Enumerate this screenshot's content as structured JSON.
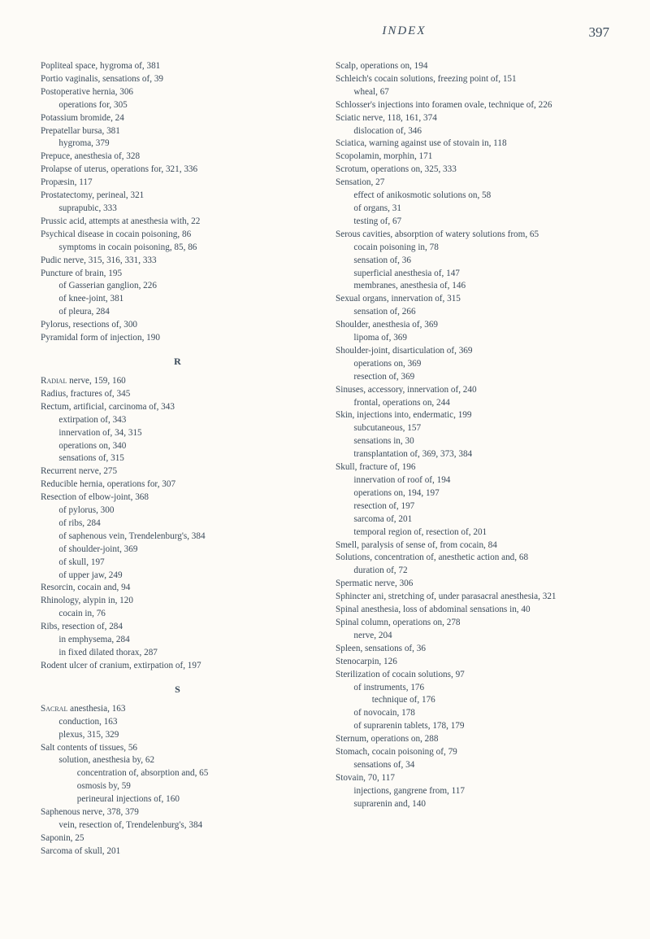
{
  "header": {
    "title": "INDEX",
    "page": "397"
  },
  "left_col": {
    "block1": [
      {
        "t": "Popliteal space, hygroma of, 381",
        "i": 0
      },
      {
        "t": "Portio vaginalis, sensations of, 39",
        "i": 0
      },
      {
        "t": "Postoperative hernia, 306",
        "i": 0
      },
      {
        "t": "operations for, 305",
        "i": 1
      },
      {
        "t": "Potassium bromide, 24",
        "i": 0
      },
      {
        "t": "Prepatellar bursa, 381",
        "i": 0
      },
      {
        "t": "hygroma, 379",
        "i": 1
      },
      {
        "t": "Prepuce, anesthesia of, 328",
        "i": 0
      },
      {
        "t": "Prolapse of uterus, operations for, 321, 336",
        "i": 0
      },
      {
        "t": "Propæsin, 117",
        "i": 0
      },
      {
        "t": "Prostatectomy, perineal, 321",
        "i": 0
      },
      {
        "t": "suprapubic, 333",
        "i": 1
      },
      {
        "t": "Prussic acid, attempts at anesthesia with, 22",
        "i": 0
      },
      {
        "t": "Psychical disease in cocain poisoning, 86",
        "i": 0
      },
      {
        "t": "symptoms in cocain poisoning, 85, 86",
        "i": 1
      },
      {
        "t": "Pudic nerve, 315, 316, 331, 333",
        "i": 0
      },
      {
        "t": "Puncture of brain, 195",
        "i": 0
      },
      {
        "t": "of Gasserian ganglion, 226",
        "i": 1
      },
      {
        "t": "of knee-joint, 381",
        "i": 1
      },
      {
        "t": "of pleura, 284",
        "i": 1
      },
      {
        "t": "Pylorus, resections of, 300",
        "i": 0
      },
      {
        "t": "Pyramidal form of injection, 190",
        "i": 0
      }
    ],
    "section_R": "R",
    "block2": [
      {
        "t": "Radial nerve, 159, 160",
        "i": 0,
        "sc": true
      },
      {
        "t": "Radius, fractures of, 345",
        "i": 0
      },
      {
        "t": "Rectum, artificial, carcinoma of, 343",
        "i": 0
      },
      {
        "t": "extirpation of, 343",
        "i": 1
      },
      {
        "t": "innervation of, 34, 315",
        "i": 1
      },
      {
        "t": "operations on, 340",
        "i": 1
      },
      {
        "t": "sensations of, 315",
        "i": 1
      },
      {
        "t": "Recurrent nerve, 275",
        "i": 0
      },
      {
        "t": "Reducible hernia, operations for, 307",
        "i": 0
      },
      {
        "t": "Resection of elbow-joint, 368",
        "i": 0
      },
      {
        "t": "of pylorus, 300",
        "i": 1
      },
      {
        "t": "of ribs, 284",
        "i": 1
      },
      {
        "t": "of saphenous vein, Trendelenburg's, 384",
        "i": 1
      },
      {
        "t": "of shoulder-joint, 369",
        "i": 1
      },
      {
        "t": "of skull, 197",
        "i": 1
      },
      {
        "t": "of upper jaw, 249",
        "i": 1
      },
      {
        "t": "Resorcin, cocain and, 94",
        "i": 0
      },
      {
        "t": "Rhinology, alypin in, 120",
        "i": 0
      },
      {
        "t": "cocain in, 76",
        "i": 1
      },
      {
        "t": "Ribs, resection of, 284",
        "i": 0
      },
      {
        "t": "in emphysema, 284",
        "i": 1
      },
      {
        "t": "in fixed dilated thorax, 287",
        "i": 1
      },
      {
        "t": "Rodent ulcer of cranium, extirpation of, 197",
        "i": 0
      }
    ],
    "section_S": "S",
    "block3": [
      {
        "t": "Sacral anesthesia, 163",
        "i": 0,
        "sc": true
      },
      {
        "t": "conduction, 163",
        "i": 1
      },
      {
        "t": "plexus, 315, 329",
        "i": 1
      },
      {
        "t": "Salt contents of tissues, 56",
        "i": 0
      },
      {
        "t": "solution, anesthesia by, 62",
        "i": 1
      },
      {
        "t": "concentration of, absorption and, 65",
        "i": 2
      },
      {
        "t": "osmosis by, 59",
        "i": 2
      },
      {
        "t": "perineural injections of, 160",
        "i": 2
      },
      {
        "t": "Saphenous nerve, 378, 379",
        "i": 0
      },
      {
        "t": "vein, resection of, Trendelenburg's, 384",
        "i": 1
      },
      {
        "t": "Saponin, 25",
        "i": 0
      },
      {
        "t": "Sarcoma of skull, 201",
        "i": 0
      }
    ]
  },
  "right_col": {
    "block1": [
      {
        "t": "Scalp, operations on, 194",
        "i": 0
      },
      {
        "t": "Schleich's cocain solutions, freezing point of, 151",
        "i": 0
      },
      {
        "t": "wheal, 67",
        "i": 1
      },
      {
        "t": "Schlosser's injections into foramen ovale, technique of, 226",
        "i": 0
      },
      {
        "t": "Sciatic nerve, 118, 161, 374",
        "i": 0
      },
      {
        "t": "dislocation of, 346",
        "i": 1
      },
      {
        "t": "Sciatica, warning against use of stovain in, 118",
        "i": 0
      },
      {
        "t": "Scopolamin, morphin, 171",
        "i": 0
      },
      {
        "t": "Scrotum, operations on, 325, 333",
        "i": 0
      },
      {
        "t": "Sensation, 27",
        "i": 0
      },
      {
        "t": "effect of anikosmotic solutions on, 58",
        "i": 1
      },
      {
        "t": "of organs, 31",
        "i": 1
      },
      {
        "t": "testing of, 67",
        "i": 1
      },
      {
        "t": "Serous cavities, absorption of watery solutions from, 65",
        "i": 0
      },
      {
        "t": "cocain poisoning in, 78",
        "i": 1
      },
      {
        "t": "sensation of, 36",
        "i": 1
      },
      {
        "t": "superficial anesthesia of, 147",
        "i": 1
      },
      {
        "t": "membranes, anesthesia of, 146",
        "i": 1
      },
      {
        "t": "Sexual organs, innervation of, 315",
        "i": 0
      },
      {
        "t": "sensation of, 266",
        "i": 1
      },
      {
        "t": "Shoulder, anesthesia of, 369",
        "i": 0
      },
      {
        "t": "lipoma of, 369",
        "i": 1
      },
      {
        "t": "Shoulder-joint, disarticulation of, 369",
        "i": 0
      },
      {
        "t": "operations on, 369",
        "i": 1
      },
      {
        "t": "resection of, 369",
        "i": 1
      },
      {
        "t": "Sinuses, accessory, innervation of, 240",
        "i": 0
      },
      {
        "t": "frontal, operations on, 244",
        "i": 1
      },
      {
        "t": "Skin, injections into, endermatic, 199",
        "i": 0
      },
      {
        "t": "subcutaneous, 157",
        "i": 1
      },
      {
        "t": "sensations in, 30",
        "i": 1
      },
      {
        "t": "transplantation of, 369, 373, 384",
        "i": 1
      },
      {
        "t": "Skull, fracture of, 196",
        "i": 0
      },
      {
        "t": "innervation of roof of, 194",
        "i": 1
      },
      {
        "t": "operations on, 194, 197",
        "i": 1
      },
      {
        "t": "resection of, 197",
        "i": 1
      },
      {
        "t": "sarcoma of, 201",
        "i": 1
      },
      {
        "t": "temporal region of, resection of, 201",
        "i": 1
      },
      {
        "t": "Smell, paralysis of sense of, from cocain, 84",
        "i": 0
      },
      {
        "t": "Solutions, concentration of, anesthetic action and, 68",
        "i": 0
      },
      {
        "t": "duration of, 72",
        "i": 1
      },
      {
        "t": "Spermatic nerve, 306",
        "i": 0
      },
      {
        "t": "Sphincter ani, stretching of, under parasacral anesthesia, 321",
        "i": 0
      },
      {
        "t": "Spinal anesthesia, loss of abdominal sensations in, 40",
        "i": 0
      },
      {
        "t": "Spinal column, operations on, 278",
        "i": 0
      },
      {
        "t": "nerve, 204",
        "i": 1
      },
      {
        "t": "Spleen, sensations of, 36",
        "i": 0
      },
      {
        "t": "Stenocarpin, 126",
        "i": 0
      },
      {
        "t": "Sterilization of cocain solutions, 97",
        "i": 0
      },
      {
        "t": "of instruments, 176",
        "i": 1
      },
      {
        "t": "technique of, 176",
        "i": 2
      },
      {
        "t": "of novocain, 178",
        "i": 1
      },
      {
        "t": "of suprarenin tablets, 178, 179",
        "i": 1
      },
      {
        "t": "Sternum, operations on, 288",
        "i": 0
      },
      {
        "t": "Stomach, cocain poisoning of, 79",
        "i": 0
      },
      {
        "t": "sensations of, 34",
        "i": 1
      },
      {
        "t": "Stovain, 70, 117",
        "i": 0
      },
      {
        "t": "injections, gangrene from, 117",
        "i": 1
      },
      {
        "t": "suprarenin and, 140",
        "i": 1
      }
    ]
  }
}
